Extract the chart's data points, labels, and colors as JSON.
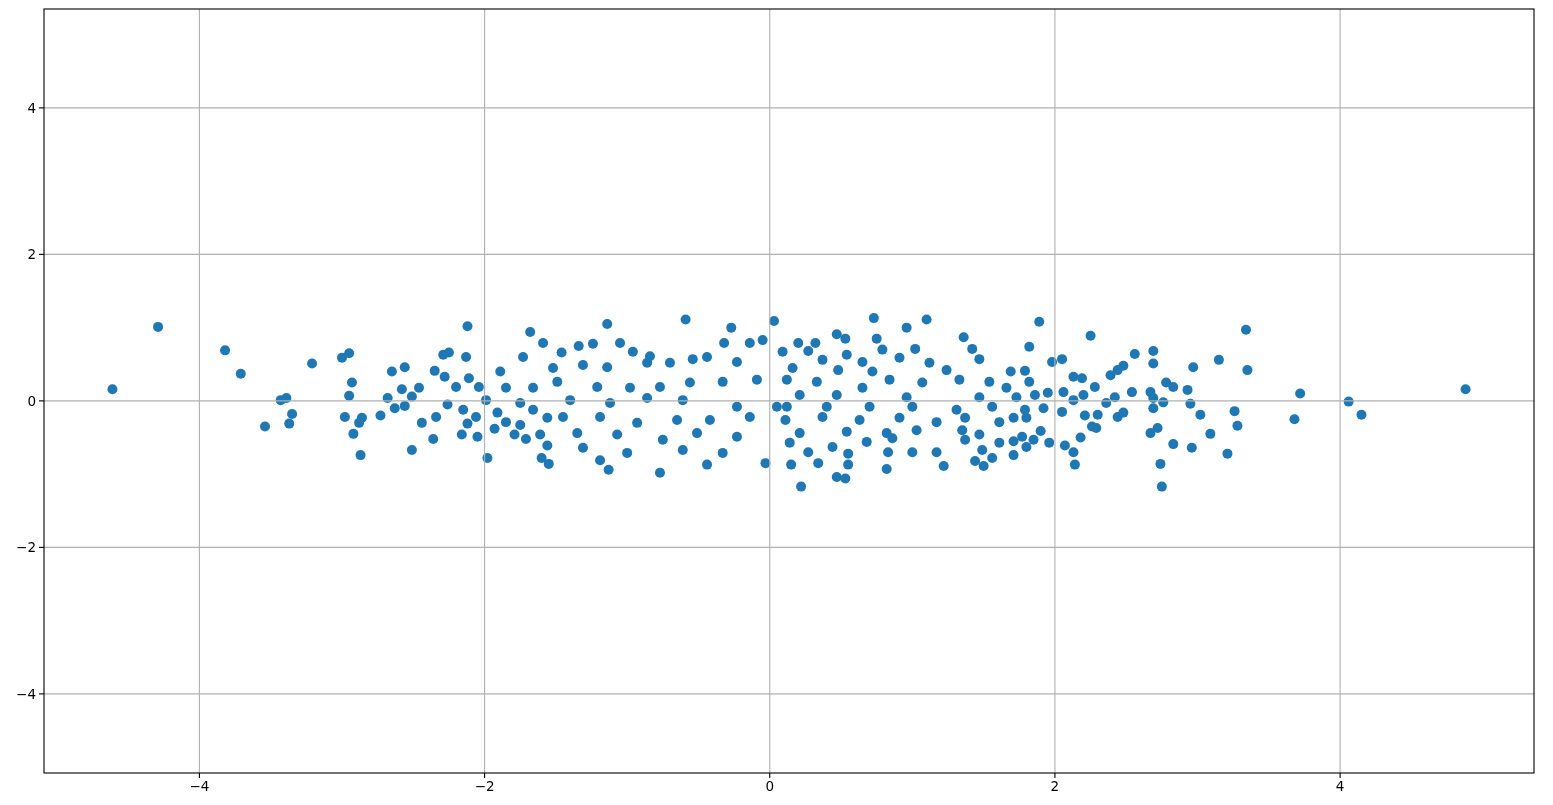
{
  "chart_data": {
    "type": "scatter",
    "color": "#1f77b4",
    "marker": "circle",
    "grid": true,
    "xlim": [
      -5.09,
      5.36
    ],
    "ylim": [
      -5.08,
      5.35
    ],
    "xticks": [
      {
        "value": -4,
        "label": "−4"
      },
      {
        "value": -2,
        "label": "−2"
      },
      0,
      2,
      4
    ],
    "yticks": [
      {
        "value": -4,
        "label": "−4"
      },
      {
        "value": -2,
        "label": "−2"
      },
      0,
      2,
      4
    ],
    "x": [
      -4.61,
      -4.29,
      -3.82,
      -3.71,
      -3.54,
      -3.43,
      -3.39,
      -3.35,
      -3.37,
      -3.21,
      -3.0,
      -2.95,
      -2.93,
      -2.95,
      -2.98,
      -2.92,
      -2.86,
      -2.88,
      -2.87,
      -2.73,
      -2.68,
      -2.63,
      -2.56,
      -2.65,
      -2.56,
      -2.58,
      -2.51,
      -2.46,
      -2.51,
      -2.44,
      -2.36,
      -2.35,
      -2.34,
      -2.28,
      -2.29,
      -2.25,
      -2.26,
      -2.2,
      -2.16,
      -2.15,
      -2.13,
      -2.12,
      -2.12,
      -2.11,
      -2.06,
      -2.05,
      -2.04,
      -1.99,
      -1.98,
      -1.93,
      -1.91,
      -1.89,
      -1.85,
      -1.85,
      -1.79,
      -1.75,
      -1.75,
      -1.73,
      -1.71,
      -1.68,
      -1.66,
      -1.66,
      -1.61,
      -1.6,
      -1.59,
      -1.56,
      -1.56,
      -1.55,
      -1.52,
      -1.14,
      -0.59,
      -0.27,
      0.03,
      -1.13,
      -0.77,
      -0.44,
      -0.03,
      -1.34,
      -1.24,
      -1.05,
      -1.46,
      -0.96,
      -0.84,
      -0.54,
      -0.32,
      -0.14,
      -0.05,
      -1.31,
      -1.14,
      -0.86,
      -0.7,
      -0.44,
      -0.23,
      -1.49,
      -1.21,
      -0.98,
      -0.77,
      -0.56,
      -0.33,
      -0.09,
      -1.4,
      -1.12,
      -0.86,
      -0.61,
      -0.23,
      0.05,
      -1.45,
      -1.19,
      -0.93,
      -0.65,
      -0.42,
      -0.14,
      -1.35,
      -1.07,
      -0.75,
      -0.51,
      -0.23,
      -1.31,
      -1.0,
      -0.61,
      -0.33,
      -1.19,
      0.73,
      1.1,
      0.96,
      0.47,
      0.53,
      1.36,
      0.75,
      0.2,
      0.32,
      0.09,
      0.27,
      0.54,
      0.79,
      1.02,
      1.42,
      0.37,
      0.65,
      0.91,
      1.12,
      1.47,
      0.16,
      0.48,
      0.72,
      1.24,
      1.69,
      0.12,
      0.33,
      0.65,
      0.84,
      1.07,
      1.33,
      1.54,
      1.66,
      0.21,
      0.47,
      0.96,
      1.47,
      0.12,
      0.4,
      0.7,
      1.0,
      1.31,
      1.56,
      0.11,
      0.37,
      0.63,
      0.91,
      1.17,
      1.37,
      1.61,
      0.21,
      0.54,
      0.82,
      1.03,
      1.35,
      0.14,
      0.68,
      0.86,
      1.37,
      1.61,
      1.47,
      0.27,
      0.44,
      0.83,
      1.0,
      1.17,
      1.49,
      1.71,
      0.34,
      0.15,
      0.55,
      0.55,
      0.82,
      1.22,
      1.44,
      1.5,
      1.56,
      0.47,
      0.53,
      0.22,
      1.89,
      2.25,
      3.34,
      1.82,
      2.56,
      2.69,
      2.69,
      2.97,
      3.15,
      3.35,
      1.79,
      1.98,
      2.05,
      1.82,
      2.13,
      2.19,
      2.39,
      2.48,
      2.44,
      2.28,
      2.78,
      2.83,
      2.93,
      2.54,
      2.67,
      1.73,
      1.86,
      2.06,
      2.2,
      2.42,
      2.69,
      1.95,
      1.79,
      1.92,
      2.05,
      2.13,
      2.36,
      2.69,
      2.76,
      2.95,
      3.26,
      1.8,
      2.21,
      2.3,
      2.44,
      2.48,
      3.02,
      2.26,
      2.29,
      2.72,
      2.67,
      3.28,
      3.09,
      1.77,
      1.9,
      2.18,
      1.85,
      1.96,
      1.8,
      2.07,
      2.83,
      2.96,
      2.13,
      3.21,
      2.14,
      2.74,
      2.75,
      1.71,
      1.71,
      3.72,
      3.68,
      4.06,
      4.15,
      4.88
    ],
    "values": [
      0.16,
      1.01,
      0.69,
      0.37,
      -0.35,
      0.01,
      0.04,
      -0.18,
      -0.31,
      0.51,
      0.59,
      0.65,
      0.25,
      0.07,
      -0.22,
      -0.45,
      -0.23,
      -0.3,
      -0.74,
      -0.2,
      0.04,
      -0.1,
      -0.07,
      0.4,
      0.46,
      0.16,
      0.06,
      0.18,
      -0.67,
      -0.3,
      -0.52,
      0.41,
      -0.22,
      0.33,
      0.63,
      0.66,
      -0.05,
      0.19,
      -0.46,
      -0.12,
      0.6,
      1.02,
      -0.31,
      0.31,
      -0.22,
      -0.49,
      0.19,
      0.01,
      -0.78,
      -0.38,
      -0.16,
      0.4,
      0.18,
      -0.29,
      -0.46,
      -0.03,
      -0.33,
      0.6,
      -0.52,
      0.94,
      0.18,
      -0.12,
      -0.46,
      -0.78,
      0.79,
      -0.23,
      -0.61,
      -0.86,
      0.45,
      1.05,
      1.11,
      1.0,
      1.09,
      -0.94,
      -0.98,
      -0.87,
      -0.85,
      0.75,
      0.78,
      0.79,
      0.66,
      0.67,
      0.61,
      0.57,
      0.79,
      0.79,
      0.83,
      0.49,
      0.46,
      0.52,
      0.52,
      0.6,
      0.53,
      0.26,
      0.19,
      0.18,
      0.19,
      0.25,
      0.26,
      0.29,
      0.01,
      -0.03,
      0.04,
      0.01,
      -0.08,
      -0.08,
      -0.22,
      -0.22,
      -0.3,
      -0.26,
      -0.26,
      -0.22,
      -0.44,
      -0.46,
      -0.53,
      -0.44,
      -0.49,
      -0.64,
      -0.71,
      -0.67,
      -0.71,
      -0.81,
      1.13,
      1.11,
      1.0,
      0.91,
      0.85,
      0.87,
      0.85,
      0.79,
      0.79,
      0.67,
      0.68,
      0.63,
      0.7,
      0.71,
      0.71,
      0.56,
      0.53,
      0.59,
      0.52,
      0.57,
      0.45,
      0.42,
      0.4,
      0.42,
      0.4,
      0.29,
      0.26,
      0.18,
      0.29,
      0.25,
      0.29,
      0.26,
      0.18,
      0.08,
      0.08,
      0.05,
      0.05,
      -0.08,
      -0.08,
      -0.08,
      -0.08,
      -0.12,
      -0.08,
      -0.26,
      -0.22,
      -0.26,
      -0.23,
      -0.29,
      -0.23,
      -0.29,
      -0.44,
      -0.42,
      -0.44,
      -0.4,
      -0.4,
      -0.57,
      -0.56,
      -0.51,
      -0.53,
      -0.57,
      -0.46,
      -0.7,
      -0.63,
      -0.7,
      -0.7,
      -0.7,
      -0.67,
      -0.74,
      -0.85,
      -0.87,
      -0.72,
      -0.87,
      -0.93,
      -0.89,
      -0.82,
      -0.89,
      -0.78,
      -1.04,
      -1.06,
      -1.17,
      1.08,
      0.89,
      0.97,
      0.74,
      0.64,
      0.68,
      0.51,
      0.46,
      0.56,
      0.42,
      0.41,
      0.53,
      0.57,
      0.26,
      0.33,
      0.31,
      0.35,
      0.48,
      0.42,
      0.19,
      0.25,
      0.19,
      0.15,
      0.12,
      0.12,
      0.05,
      0.08,
      0.12,
      0.08,
      0.05,
      0.04,
      0.11,
      -0.12,
      -0.1,
      -0.15,
      0.01,
      -0.03,
      -0.1,
      -0.02,
      -0.04,
      -0.14,
      -0.23,
      -0.2,
      -0.19,
      -0.22,
      -0.16,
      -0.19,
      -0.35,
      -0.37,
      -0.37,
      -0.44,
      -0.34,
      -0.45,
      -0.49,
      -0.41,
      -0.5,
      -0.53,
      -0.57,
      -0.63,
      -0.61,
      -0.59,
      -0.64,
      -0.7,
      -0.72,
      -0.87,
      -0.86,
      -1.17,
      -0.55,
      -0.23,
      0.1,
      -0.25,
      -0.01,
      -0.19,
      0.16
    ]
  }
}
